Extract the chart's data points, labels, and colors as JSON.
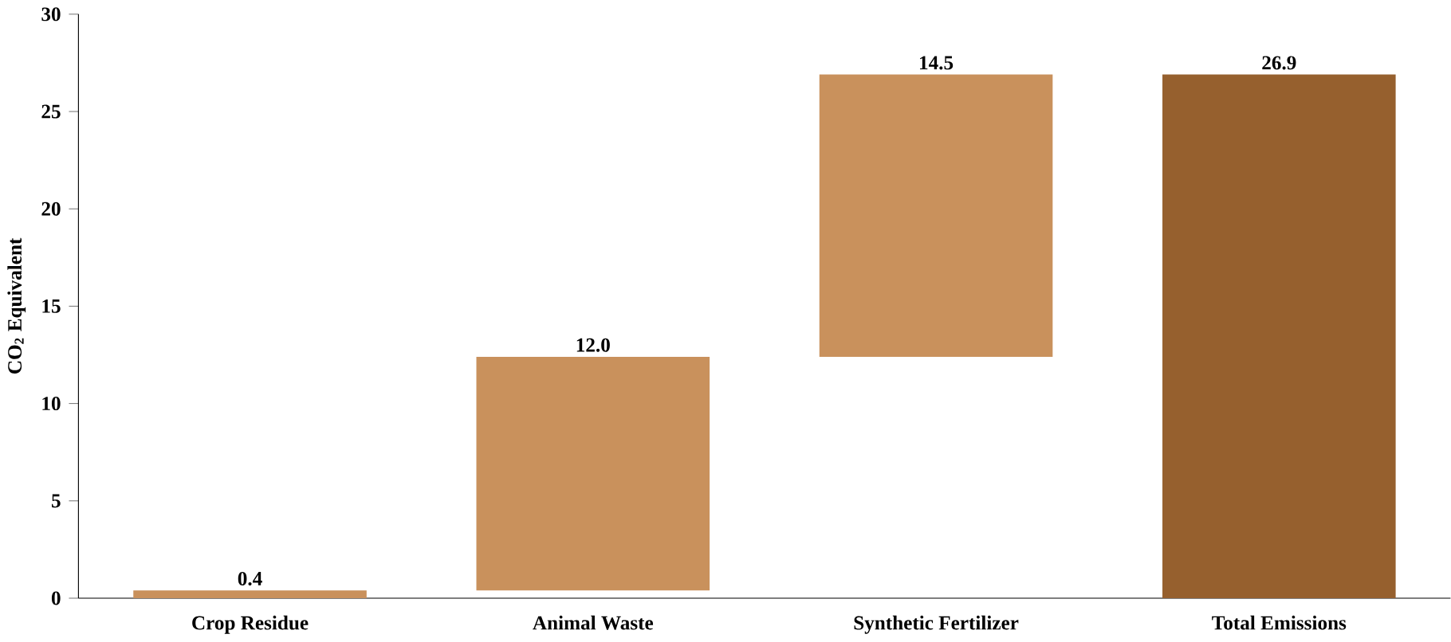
{
  "chart_data": {
    "type": "bar",
    "ylabel": "CO$_{2}$ Equivalent",
    "categories": [
      "Crop Residue",
      "Animal Waste",
      "Synthetic Fertilizer",
      "Total Emissions"
    ],
    "values": [
      0.4,
      12.0,
      14.5,
      26.9
    ],
    "base": [
      0,
      0.4,
      12.4,
      0
    ],
    "colors": [
      "#c9915c",
      "#c9915c",
      "#c9915c",
      "#96602e"
    ],
    "value_labels": [
      "0.4",
      "12.0",
      "14.5",
      "26.9"
    ],
    "ylim": [
      0,
      30
    ],
    "yticks": [
      0,
      5,
      10,
      15,
      20,
      25,
      30
    ],
    "grid": false
  }
}
